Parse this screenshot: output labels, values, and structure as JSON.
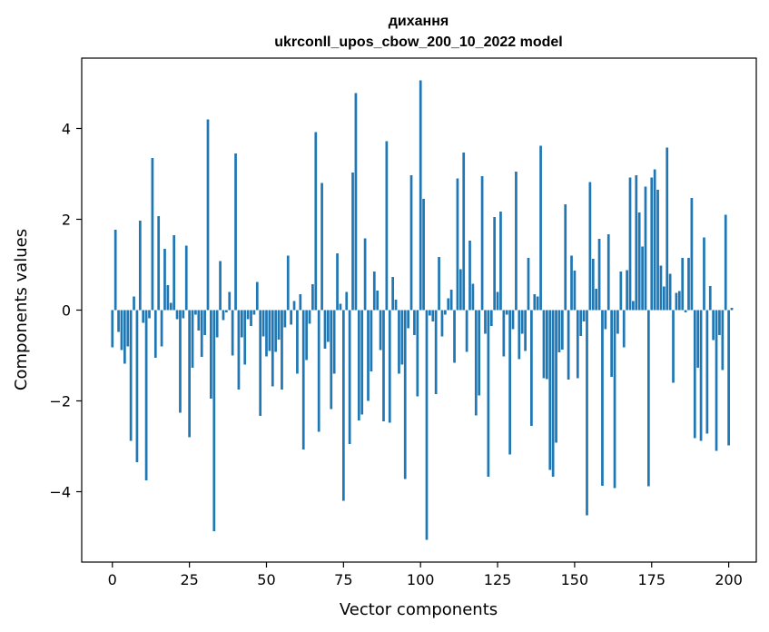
{
  "chart_data": {
    "type": "bar",
    "title": "дихання",
    "subtitle": "ukrconll_upos_cbow_200_10_2022 model",
    "xlabel": "Vector components",
    "ylabel": "Components values",
    "xlim": [
      -9.95,
      208.95
    ],
    "ylim": [
      -5.55,
      5.55
    ],
    "xticks": [
      0,
      25,
      50,
      75,
      100,
      125,
      150,
      175,
      200
    ],
    "yticks": [
      -4,
      -2,
      0,
      2,
      4
    ],
    "ytick_labels": [
      "−4",
      "−2",
      "0",
      "2",
      "4"
    ],
    "grid": false,
    "legend": "none",
    "bar_color": "#1f77b4",
    "values": [
      -0.82,
      1.77,
      -0.48,
      -0.88,
      -1.18,
      -0.8,
      -2.88,
      0.3,
      -3.35,
      1.97,
      -0.28,
      -3.75,
      -0.18,
      3.35,
      -1.05,
      2.07,
      -0.8,
      1.35,
      0.55,
      0.16,
      1.65,
      -0.2,
      -2.26,
      -0.18,
      1.42,
      -2.8,
      -1.27,
      -0.1,
      -0.45,
      -1.03,
      -0.55,
      4.2,
      -1.95,
      -4.87,
      -0.6,
      1.08,
      -0.22,
      -0.05,
      0.4,
      -1.0,
      3.45,
      -1.75,
      -0.6,
      -1.2,
      -0.2,
      -0.35,
      -0.1,
      0.62,
      -2.33,
      -0.58,
      -1.02,
      -0.9,
      -1.68,
      -0.92,
      -0.65,
      -1.75,
      -0.38,
      1.2,
      -0.32,
      0.2,
      -1.4,
      0.35,
      -3.07,
      -1.1,
      -0.3,
      0.57,
      3.92,
      -2.68,
      2.8,
      -0.85,
      -0.7,
      -2.18,
      -1.4,
      1.25,
      0.14,
      -4.2,
      0.4,
      -2.95,
      3.03,
      4.78,
      -2.43,
      -2.3,
      1.58,
      -2.0,
      -1.35,
      0.85,
      0.43,
      -0.88,
      -2.45,
      3.72,
      -2.48,
      0.73,
      0.23,
      -1.4,
      -1.2,
      -3.72,
      -0.4,
      2.97,
      -0.55,
      -1.9,
      5.06,
      2.45,
      -5.06,
      -0.12,
      -0.25,
      -1.85,
      1.17,
      -0.58,
      -0.1,
      0.26,
      0.45,
      -1.16,
      2.9,
      0.9,
      3.47,
      -0.92,
      1.53,
      0.58,
      -2.32,
      -1.88,
      2.95,
      -0.52,
      -3.67,
      -0.35,
      2.05,
      0.4,
      2.17,
      -1.02,
      -0.1,
      -3.18,
      -0.42,
      3.05,
      -1.08,
      -0.52,
      -0.9,
      1.15,
      -2.55,
      0.35,
      0.3,
      3.62,
      -1.5,
      -1.52,
      -3.52,
      -3.67,
      -2.92,
      -0.93,
      -0.87,
      2.33,
      -1.53,
      1.2,
      0.87,
      -1.5,
      -0.57,
      -0.25,
      -4.52,
      2.82,
      1.13,
      0.47,
      1.57,
      -3.87,
      -0.42,
      1.67,
      -1.47,
      -3.92,
      -0.52,
      0.85,
      -0.82,
      0.88,
      2.92,
      0.2,
      2.97,
      2.15,
      1.4,
      2.72,
      -3.88,
      2.92,
      3.1,
      2.65,
      0.98,
      0.52,
      3.58,
      0.8,
      -1.6,
      0.38,
      0.42,
      1.15,
      -0.05,
      1.15,
      2.47,
      -2.82,
      -1.27,
      -2.88,
      1.6,
      -2.72,
      0.53,
      -0.66,
      -3.1,
      -0.55,
      -1.32,
      2.1,
      -2.98,
      0.05
    ]
  }
}
